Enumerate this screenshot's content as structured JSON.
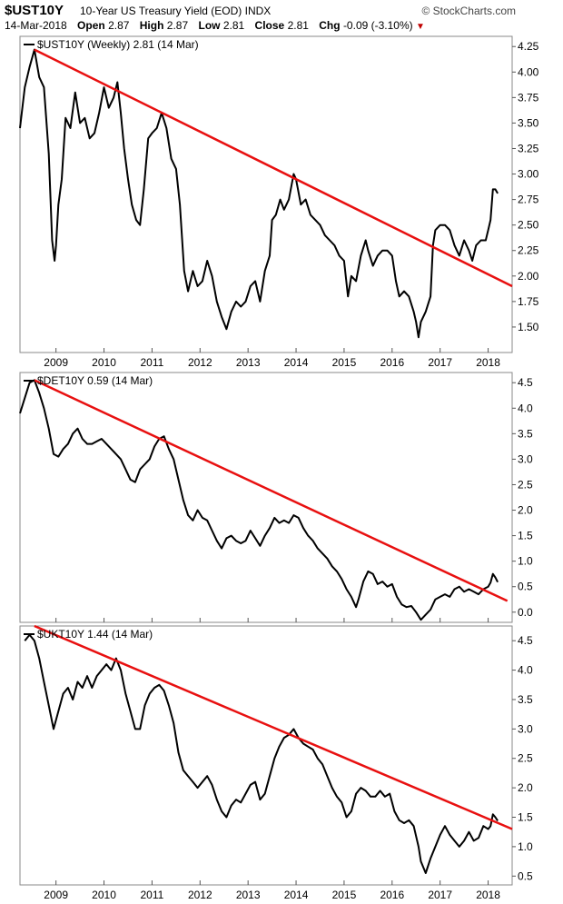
{
  "header": {
    "ticker": "$UST10Y",
    "description": "10-Year US Treasury Yield (EOD)",
    "exchange": "INDX",
    "brand": "© StockCharts.com",
    "date": "14-Mar-2018",
    "open_label": "Open",
    "open": "2.87",
    "high_label": "High",
    "high": "2.87",
    "low_label": "Low",
    "low": "2.81",
    "close_label": "Close",
    "close": "2.81",
    "chg_label": "Chg",
    "chg": "-0.09 (-3.10%)",
    "chg_arrow": "▼"
  },
  "x_axis_labels": [
    "2009",
    "2010",
    "2011",
    "2012",
    "2013",
    "2014",
    "2015",
    "2016",
    "2017",
    "2018"
  ],
  "chart_data": [
    {
      "type": "line",
      "legend": "$UST10Y (Weekly) 2.81 (14 Mar)",
      "xlim": [
        2008.25,
        2018.5
      ],
      "ylim": [
        1.25,
        4.35
      ],
      "yticks": [
        1.5,
        1.75,
        2.0,
        2.25,
        2.5,
        2.75,
        3.0,
        3.25,
        3.5,
        3.75,
        4.0,
        4.25
      ],
      "ytick_decimals": 2,
      "line_color": "#000000",
      "trendline_color": "#e81010",
      "trendline": [
        [
          2008.55,
          4.22
        ],
        [
          2018.5,
          1.9
        ]
      ],
      "series": [
        {
          "x": [
            2008.25,
            2008.35,
            2008.45,
            2008.55,
            2008.65,
            2008.75,
            2008.85,
            2008.92,
            2008.97,
            2009.0,
            2009.05,
            2009.12,
            2009.2,
            2009.3,
            2009.4,
            2009.5,
            2009.6,
            2009.7,
            2009.8,
            2009.9,
            2010.0,
            2010.1,
            2010.2,
            2010.28,
            2010.35,
            2010.42,
            2010.5,
            2010.58,
            2010.67,
            2010.75,
            2010.83,
            2010.92,
            2011.0,
            2011.1,
            2011.2,
            2011.3,
            2011.4,
            2011.5,
            2011.58,
            2011.67,
            2011.75,
            2011.85,
            2011.95,
            2012.05,
            2012.15,
            2012.25,
            2012.35,
            2012.45,
            2012.55,
            2012.65,
            2012.75,
            2012.85,
            2012.95,
            2013.05,
            2013.15,
            2013.25,
            2013.35,
            2013.45,
            2013.5,
            2013.58,
            2013.67,
            2013.75,
            2013.85,
            2013.95,
            2014.0,
            2014.1,
            2014.2,
            2014.3,
            2014.4,
            2014.5,
            2014.6,
            2014.7,
            2014.8,
            2014.9,
            2015.0,
            2015.08,
            2015.15,
            2015.25,
            2015.35,
            2015.45,
            2015.5,
            2015.6,
            2015.7,
            2015.8,
            2015.9,
            2016.0,
            2016.08,
            2016.15,
            2016.25,
            2016.35,
            2016.45,
            2016.5,
            2016.55,
            2016.6,
            2016.7,
            2016.8,
            2016.85,
            2016.9,
            2017.0,
            2017.1,
            2017.2,
            2017.3,
            2017.4,
            2017.5,
            2017.6,
            2017.67,
            2017.75,
            2017.85,
            2017.95,
            2018.0,
            2018.05,
            2018.1,
            2018.15,
            2018.2
          ],
          "y": [
            3.45,
            3.85,
            4.05,
            4.22,
            3.95,
            3.85,
            3.2,
            2.35,
            2.15,
            2.3,
            2.7,
            2.95,
            3.55,
            3.45,
            3.8,
            3.5,
            3.55,
            3.35,
            3.4,
            3.6,
            3.85,
            3.65,
            3.75,
            3.9,
            3.6,
            3.25,
            2.95,
            2.7,
            2.55,
            2.5,
            2.85,
            3.35,
            3.4,
            3.45,
            3.6,
            3.45,
            3.15,
            3.05,
            2.7,
            2.05,
            1.85,
            2.05,
            1.9,
            1.95,
            2.15,
            2.0,
            1.75,
            1.6,
            1.48,
            1.65,
            1.75,
            1.7,
            1.75,
            1.9,
            1.95,
            1.75,
            2.05,
            2.2,
            2.55,
            2.6,
            2.75,
            2.65,
            2.75,
            3.0,
            2.95,
            2.7,
            2.75,
            2.6,
            2.55,
            2.5,
            2.4,
            2.35,
            2.3,
            2.2,
            2.15,
            1.8,
            2.0,
            1.95,
            2.2,
            2.35,
            2.25,
            2.1,
            2.2,
            2.25,
            2.25,
            2.2,
            1.95,
            1.8,
            1.85,
            1.8,
            1.65,
            1.55,
            1.4,
            1.55,
            1.65,
            1.8,
            2.3,
            2.45,
            2.5,
            2.5,
            2.45,
            2.3,
            2.2,
            2.35,
            2.25,
            2.15,
            2.3,
            2.35,
            2.35,
            2.45,
            2.55,
            2.85,
            2.85,
            2.81
          ]
        }
      ]
    },
    {
      "type": "line",
      "legend": "$DET10Y 0.59 (14 Mar)",
      "xlim": [
        2008.25,
        2018.5
      ],
      "ylim": [
        -0.2,
        4.7
      ],
      "yticks": [
        0.0,
        0.5,
        1.0,
        1.5,
        2.0,
        2.5,
        3.0,
        3.5,
        4.0,
        4.5
      ],
      "ytick_decimals": 1,
      "line_color": "#000000",
      "trendline_color": "#e81010",
      "trendline": [
        [
          2008.55,
          4.55
        ],
        [
          2018.4,
          0.22
        ]
      ],
      "series": [
        {
          "x": [
            2008.25,
            2008.35,
            2008.45,
            2008.55,
            2008.65,
            2008.75,
            2008.85,
            2008.95,
            2009.05,
            2009.15,
            2009.25,
            2009.35,
            2009.45,
            2009.55,
            2009.65,
            2009.75,
            2009.85,
            2009.95,
            2010.05,
            2010.15,
            2010.25,
            2010.35,
            2010.45,
            2010.55,
            2010.65,
            2010.75,
            2010.85,
            2010.95,
            2011.05,
            2011.15,
            2011.25,
            2011.35,
            2011.45,
            2011.55,
            2011.65,
            2011.75,
            2011.85,
            2011.95,
            2012.05,
            2012.15,
            2012.25,
            2012.35,
            2012.45,
            2012.55,
            2012.65,
            2012.75,
            2012.85,
            2012.95,
            2013.05,
            2013.15,
            2013.25,
            2013.35,
            2013.45,
            2013.55,
            2013.65,
            2013.75,
            2013.85,
            2013.95,
            2014.05,
            2014.15,
            2014.25,
            2014.35,
            2014.45,
            2014.55,
            2014.65,
            2014.75,
            2014.85,
            2014.95,
            2015.05,
            2015.15,
            2015.25,
            2015.3,
            2015.4,
            2015.5,
            2015.6,
            2015.7,
            2015.8,
            2015.9,
            2016.0,
            2016.1,
            2016.2,
            2016.3,
            2016.4,
            2016.5,
            2016.6,
            2016.7,
            2016.8,
            2016.9,
            2017.0,
            2017.1,
            2017.2,
            2017.3,
            2017.4,
            2017.5,
            2017.6,
            2017.7,
            2017.8,
            2017.9,
            2018.0,
            2018.05,
            2018.1,
            2018.15,
            2018.2
          ],
          "y": [
            3.9,
            4.2,
            4.5,
            4.55,
            4.3,
            4.0,
            3.6,
            3.1,
            3.05,
            3.2,
            3.3,
            3.5,
            3.6,
            3.4,
            3.3,
            3.3,
            3.35,
            3.4,
            3.3,
            3.2,
            3.1,
            3.0,
            2.8,
            2.6,
            2.55,
            2.8,
            2.9,
            3.0,
            3.25,
            3.4,
            3.45,
            3.2,
            3.0,
            2.6,
            2.2,
            1.9,
            1.8,
            2.0,
            1.85,
            1.8,
            1.6,
            1.4,
            1.25,
            1.45,
            1.5,
            1.4,
            1.35,
            1.4,
            1.6,
            1.45,
            1.3,
            1.5,
            1.65,
            1.85,
            1.75,
            1.8,
            1.75,
            1.9,
            1.85,
            1.65,
            1.5,
            1.4,
            1.25,
            1.15,
            1.05,
            0.9,
            0.8,
            0.65,
            0.45,
            0.3,
            0.1,
            0.25,
            0.6,
            0.8,
            0.75,
            0.55,
            0.6,
            0.5,
            0.55,
            0.3,
            0.15,
            0.1,
            0.12,
            0.0,
            -0.15,
            -0.05,
            0.05,
            0.25,
            0.3,
            0.35,
            0.3,
            0.45,
            0.5,
            0.4,
            0.45,
            0.4,
            0.35,
            0.45,
            0.5,
            0.58,
            0.75,
            0.68,
            0.59
          ]
        }
      ]
    },
    {
      "type": "line",
      "legend": "$UKT10Y 1.44 (14 Mar)",
      "xlim": [
        2008.25,
        2018.5
      ],
      "ylim": [
        0.35,
        4.75
      ],
      "yticks": [
        0.5,
        1.0,
        1.5,
        2.0,
        2.5,
        3.0,
        3.5,
        4.0,
        4.5
      ],
      "ytick_decimals": 1,
      "line_color": "#000000",
      "trendline_color": "#e81010",
      "trendline": [
        [
          2008.55,
          4.75
        ],
        [
          2018.5,
          1.3
        ]
      ],
      "series": [
        {
          "x": [
            2008.35,
            2008.45,
            2008.55,
            2008.65,
            2008.75,
            2008.85,
            2008.95,
            2009.05,
            2009.15,
            2009.25,
            2009.35,
            2009.45,
            2009.55,
            2009.65,
            2009.75,
            2009.85,
            2009.95,
            2010.05,
            2010.15,
            2010.25,
            2010.35,
            2010.45,
            2010.55,
            2010.65,
            2010.75,
            2010.85,
            2010.95,
            2011.05,
            2011.15,
            2011.25,
            2011.35,
            2011.45,
            2011.55,
            2011.65,
            2011.75,
            2011.85,
            2011.95,
            2012.05,
            2012.15,
            2012.25,
            2012.35,
            2012.45,
            2012.55,
            2012.65,
            2012.75,
            2012.85,
            2012.95,
            2013.05,
            2013.15,
            2013.25,
            2013.35,
            2013.45,
            2013.55,
            2013.65,
            2013.75,
            2013.85,
            2013.95,
            2014.05,
            2014.15,
            2014.25,
            2014.35,
            2014.45,
            2014.55,
            2014.65,
            2014.75,
            2014.85,
            2014.95,
            2015.05,
            2015.15,
            2015.25,
            2015.35,
            2015.45,
            2015.55,
            2015.65,
            2015.75,
            2015.85,
            2015.95,
            2016.05,
            2016.15,
            2016.25,
            2016.35,
            2016.45,
            2016.55,
            2016.6,
            2016.7,
            2016.8,
            2016.9,
            2017.0,
            2017.1,
            2017.2,
            2017.3,
            2017.4,
            2017.5,
            2017.6,
            2017.7,
            2017.8,
            2017.9,
            2018.0,
            2018.05,
            2018.1,
            2018.15,
            2018.2
          ],
          "y": [
            4.5,
            4.6,
            4.5,
            4.2,
            3.8,
            3.4,
            3.0,
            3.3,
            3.6,
            3.7,
            3.5,
            3.8,
            3.7,
            3.9,
            3.7,
            3.9,
            4.0,
            4.1,
            4.0,
            4.2,
            4.0,
            3.6,
            3.3,
            3.0,
            3.0,
            3.4,
            3.6,
            3.7,
            3.75,
            3.65,
            3.4,
            3.1,
            2.6,
            2.3,
            2.2,
            2.1,
            2.0,
            2.1,
            2.2,
            2.05,
            1.8,
            1.6,
            1.5,
            1.7,
            1.8,
            1.75,
            1.9,
            2.05,
            2.1,
            1.8,
            1.9,
            2.2,
            2.5,
            2.7,
            2.85,
            2.9,
            3.0,
            2.85,
            2.75,
            2.7,
            2.65,
            2.5,
            2.4,
            2.2,
            2.0,
            1.85,
            1.75,
            1.5,
            1.6,
            1.9,
            2.0,
            1.95,
            1.85,
            1.85,
            1.95,
            1.85,
            1.9,
            1.6,
            1.45,
            1.4,
            1.45,
            1.35,
            1.0,
            0.75,
            0.55,
            0.8,
            1.0,
            1.2,
            1.35,
            1.2,
            1.1,
            1.0,
            1.1,
            1.25,
            1.1,
            1.15,
            1.35,
            1.3,
            1.35,
            1.55,
            1.5,
            1.44
          ]
        }
      ]
    }
  ]
}
